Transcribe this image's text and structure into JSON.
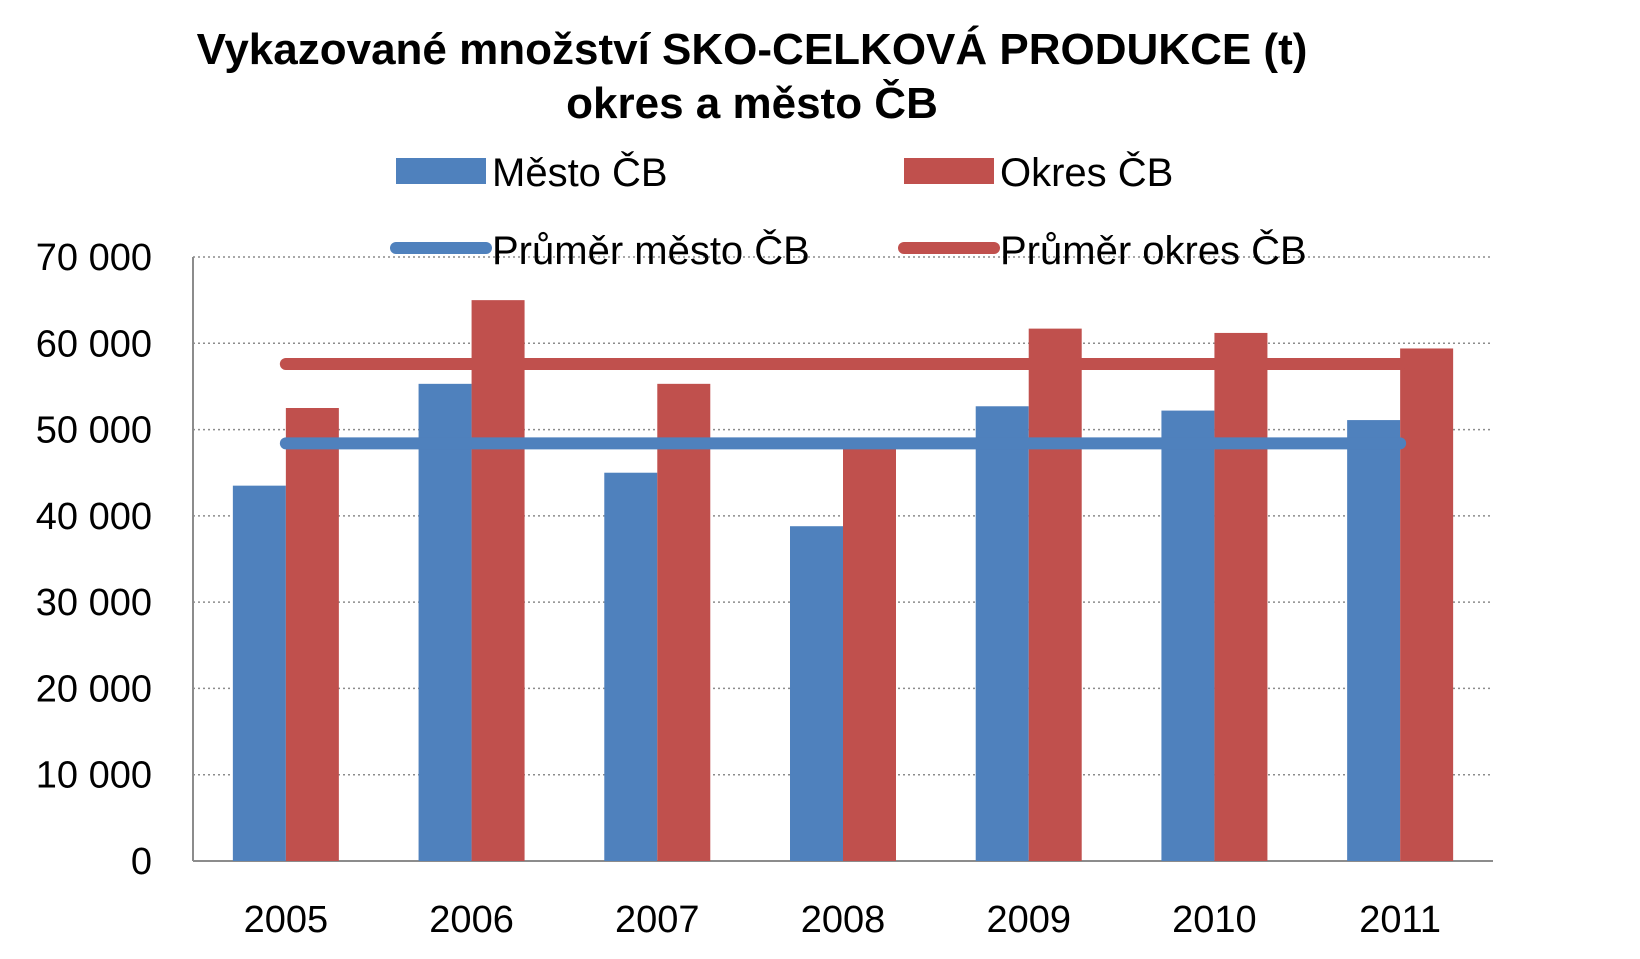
{
  "chart_data": {
    "type": "bar",
    "title": "Vykazované množství SKO-CELKOVÁ PRODUKCE (t)",
    "subtitle": "okres a město ČB",
    "xlabel": "",
    "ylabel": "",
    "categories": [
      "2005",
      "2006",
      "2007",
      "2008",
      "2009",
      "2010",
      "2011"
    ],
    "series": [
      {
        "name": "Město ČB",
        "color": "#4f81bd",
        "values": [
          43500,
          55300,
          45000,
          38800,
          52700,
          52200,
          51100
        ]
      },
      {
        "name": "Okres ČB",
        "color": "#c0504d",
        "values": [
          52500,
          65000,
          55300,
          48000,
          61700,
          61200,
          59400
        ]
      }
    ],
    "average_lines": [
      {
        "name": "Průměr město ČB",
        "color": "#4f81bd",
        "value": 48400
      },
      {
        "name": "Průměr okres ČB",
        "color": "#c0504d",
        "value": 57600
      }
    ],
    "ylim": [
      0,
      70000
    ],
    "yticks": [
      0,
      10000,
      20000,
      30000,
      40000,
      50000,
      60000,
      70000
    ],
    "ytick_labels": [
      "0",
      "10 000",
      "20 000",
      "30 000",
      "40 000",
      "50 000",
      "60 000",
      "70 000"
    ],
    "grid": true,
    "legend_position": "top"
  }
}
